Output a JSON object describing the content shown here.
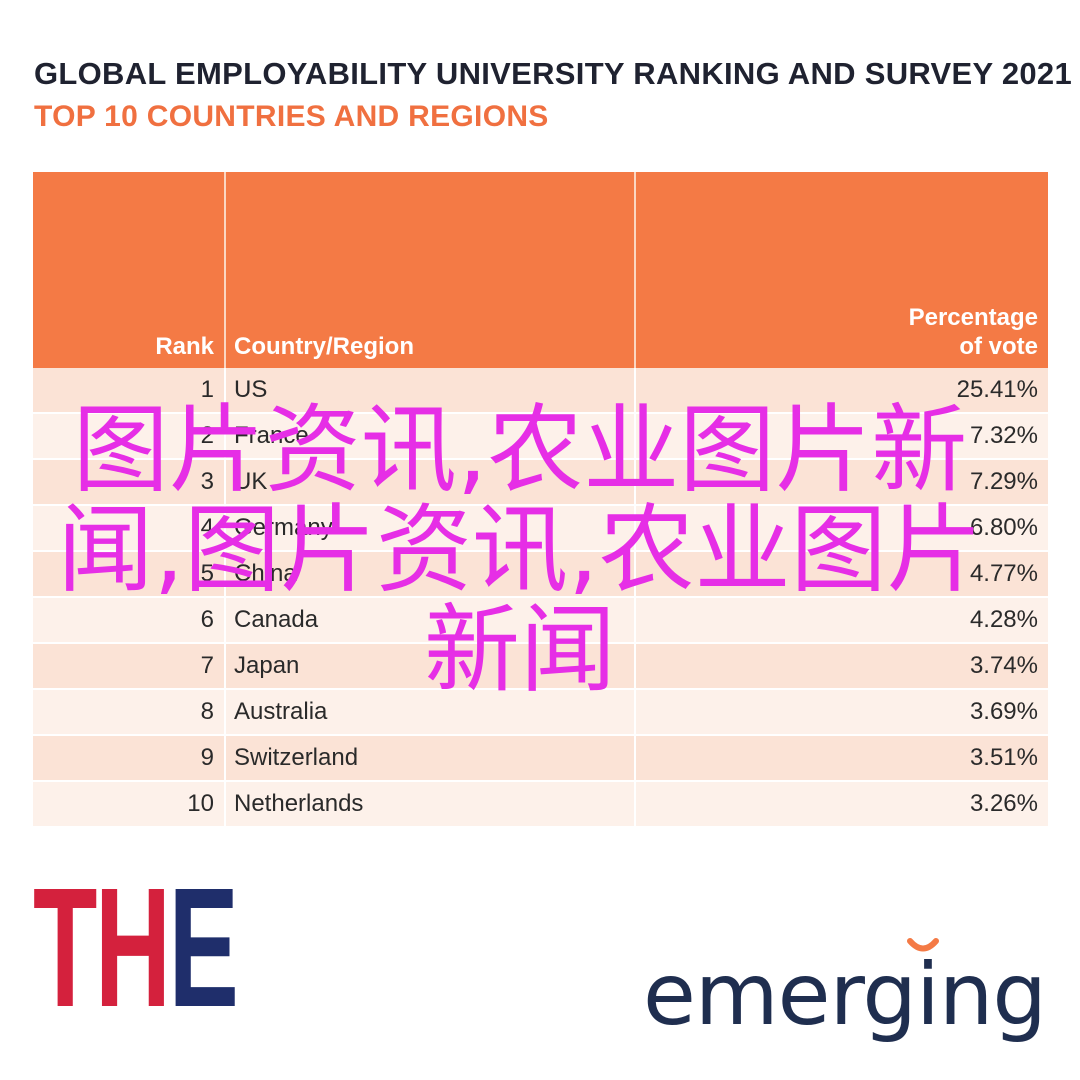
{
  "chart_data": {
    "type": "table",
    "title": "GLOBAL EMPLOYABILITY UNIVERSITY RANKING AND SURVEY 2021",
    "subtitle": "TOP 10 COUNTRIES AND REGIONS",
    "columns": [
      "Rank",
      "Country/Region",
      "Percentage of vote"
    ],
    "rows": [
      {
        "rank": "1",
        "country": "US",
        "pct": "25.41%"
      },
      {
        "rank": "2",
        "country": "France",
        "pct": "7.32%"
      },
      {
        "rank": "3",
        "country": "UK",
        "pct": "7.29%"
      },
      {
        "rank": "4",
        "country": "Germany",
        "pct": "6.80%"
      },
      {
        "rank": "5",
        "country": "China",
        "pct": "4.77%"
      },
      {
        "rank": "6",
        "country": "Canada",
        "pct": "4.28%"
      },
      {
        "rank": "7",
        "country": "Japan",
        "pct": "3.74%"
      },
      {
        "rank": "8",
        "country": "Australia",
        "pct": "3.69%"
      },
      {
        "rank": "9",
        "country": "Switzerland",
        "pct": "3.51%"
      },
      {
        "rank": "10",
        "country": "Netherlands",
        "pct": "3.26%"
      }
    ]
  },
  "header": {
    "rank": "Rank",
    "country": "Country/Region",
    "pct_line1": "Percentage",
    "pct_line2": "of vote"
  },
  "watermark": "图片资讯,农业图片新闻,图片资讯,农业图片新闻",
  "logos": {
    "the_t": "T",
    "the_h": "H",
    "the_e": "E",
    "emerging": "emerging"
  },
  "colors": {
    "header_bg": "#f47a45",
    "subtitle": "#f07040",
    "row_odd": "#fbe3d6",
    "row_even": "#fdf1ea",
    "watermark": "#e62ee6",
    "the_red": "#d4213d",
    "the_navy": "#1f2e6b"
  }
}
